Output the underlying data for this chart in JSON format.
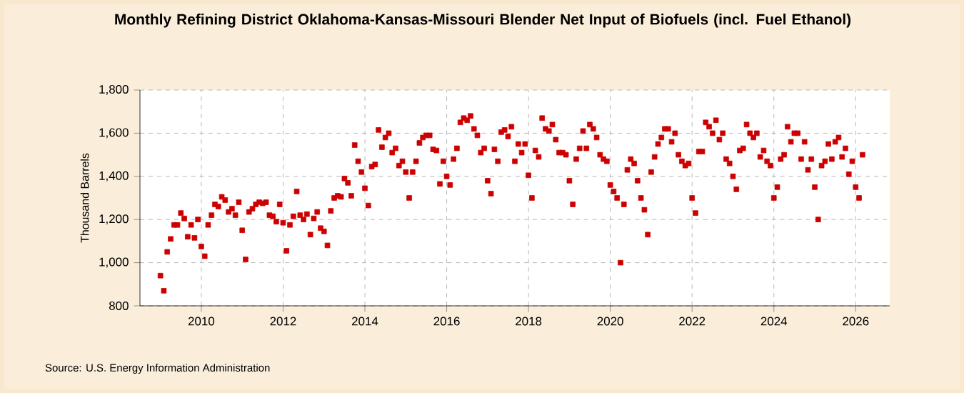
{
  "chart_data": {
    "type": "scatter",
    "title": "Monthly Refining District Oklahoma-Kansas-Missouri Blender Net Input of Biofuels (incl. Fuel Ethanol)",
    "ylabel": "Thousand Barrels",
    "annotations": [
      "Source: U.S. Energy Information Administration"
    ],
    "x": [
      "2009-01",
      "2009-02",
      "2009-03",
      "2009-04",
      "2009-05",
      "2009-06",
      "2009-07",
      "2009-08",
      "2009-09",
      "2009-10",
      "2009-11",
      "2009-12",
      "2010-01",
      "2010-02",
      "2010-03",
      "2010-04",
      "2010-05",
      "2010-06",
      "2010-07",
      "2010-08",
      "2010-09",
      "2010-10",
      "2010-11",
      "2010-12",
      "2011-01",
      "2011-02",
      "2011-03",
      "2011-04",
      "2011-05",
      "2011-06",
      "2011-07",
      "2011-08",
      "2011-09",
      "2011-10",
      "2011-11",
      "2011-12",
      "2012-01",
      "2012-02",
      "2012-03",
      "2012-04",
      "2012-05",
      "2012-06",
      "2012-07",
      "2012-08",
      "2012-09",
      "2012-10",
      "2012-11",
      "2012-12",
      "2013-01",
      "2013-02",
      "2013-03",
      "2013-04",
      "2013-05",
      "2013-06",
      "2013-07",
      "2013-08",
      "2013-09",
      "2013-10",
      "2013-11",
      "2013-12",
      "2014-01",
      "2014-02",
      "2014-03",
      "2014-04",
      "2014-05",
      "2014-06",
      "2014-07",
      "2014-08",
      "2014-09",
      "2014-10",
      "2014-11",
      "2014-12",
      "2015-01",
      "2015-02",
      "2015-03",
      "2015-04",
      "2015-05",
      "2015-06",
      "2015-07",
      "2015-08",
      "2015-09",
      "2015-10",
      "2015-11",
      "2015-12",
      "2016-01",
      "2016-02",
      "2016-03",
      "2016-04",
      "2016-05",
      "2016-06",
      "2016-07",
      "2016-08",
      "2016-09",
      "2016-10",
      "2016-11",
      "2016-12",
      "2017-01",
      "2017-02",
      "2017-03",
      "2017-04",
      "2017-05",
      "2017-06",
      "2017-07",
      "2017-08",
      "2017-09",
      "2017-10",
      "2017-11",
      "2017-12",
      "2018-01",
      "2018-02",
      "2018-03",
      "2018-04",
      "2018-05",
      "2018-06",
      "2018-07",
      "2018-08",
      "2018-09",
      "2018-10",
      "2018-11",
      "2018-12",
      "2019-01",
      "2019-02",
      "2019-03",
      "2019-04",
      "2019-05",
      "2019-06",
      "2019-07",
      "2019-08",
      "2019-09",
      "2019-10",
      "2019-11",
      "2019-12",
      "2020-01",
      "2020-02",
      "2020-03",
      "2020-04",
      "2020-05",
      "2020-06",
      "2020-07",
      "2020-08",
      "2020-09",
      "2020-10",
      "2020-11",
      "2020-12",
      "2021-01",
      "2021-02",
      "2021-03",
      "2021-04",
      "2021-05",
      "2021-06",
      "2021-07",
      "2021-08",
      "2021-09",
      "2021-10",
      "2021-11",
      "2021-12",
      "2022-01",
      "2022-02",
      "2022-03",
      "2022-04",
      "2022-05",
      "2022-06",
      "2022-07",
      "2022-08",
      "2022-09",
      "2022-10",
      "2022-11",
      "2022-12",
      "2023-01",
      "2023-02",
      "2023-03",
      "2023-04",
      "2023-05",
      "2023-06",
      "2023-07",
      "2023-08",
      "2023-09",
      "2023-10",
      "2023-11",
      "2023-12",
      "2024-01",
      "2024-02",
      "2024-03",
      "2024-04",
      "2024-05",
      "2024-06",
      "2024-07",
      "2024-08",
      "2024-09",
      "2024-10",
      "2024-11",
      "2024-12",
      "2025-01",
      "2025-02",
      "2025-03",
      "2025-04",
      "2025-05",
      "2025-06",
      "2025-07",
      "2025-08",
      "2025-09",
      "2025-10",
      "2025-11",
      "2025-12",
      "2026-01",
      "2026-02",
      "2026-03"
    ],
    "values": [
      940,
      870,
      1050,
      1110,
      1175,
      1175,
      1230,
      1205,
      1120,
      1175,
      1115,
      1200,
      1075,
      1030,
      1175,
      1220,
      1270,
      1260,
      1305,
      1290,
      1235,
      1250,
      1220,
      1280,
      1150,
      1015,
      1235,
      1250,
      1270,
      1280,
      1275,
      1280,
      1220,
      1215,
      1190,
      1270,
      1185,
      1055,
      1175,
      1215,
      1330,
      1220,
      1200,
      1225,
      1130,
      1205,
      1235,
      1160,
      1145,
      1080,
      1240,
      1300,
      1310,
      1305,
      1390,
      1370,
      1310,
      1545,
      1470,
      1420,
      1345,
      1265,
      1445,
      1455,
      1615,
      1535,
      1580,
      1600,
      1510,
      1530,
      1450,
      1470,
      1420,
      1300,
      1420,
      1470,
      1555,
      1580,
      1590,
      1590,
      1525,
      1520,
      1365,
      1470,
      1400,
      1360,
      1480,
      1530,
      1650,
      1670,
      1660,
      1680,
      1620,
      1590,
      1510,
      1530,
      1380,
      1320,
      1525,
      1470,
      1605,
      1615,
      1585,
      1630,
      1470,
      1550,
      1510,
      1550,
      1405,
      1300,
      1520,
      1490,
      1670,
      1620,
      1610,
      1640,
      1570,
      1510,
      1510,
      1500,
      1380,
      1270,
      1480,
      1530,
      1610,
      1530,
      1640,
      1620,
      1580,
      1500,
      1480,
      1470,
      1360,
      1330,
      1300,
      1000,
      1270,
      1430,
      1480,
      1460,
      1380,
      1300,
      1245,
      1130,
      1420,
      1490,
      1550,
      1580,
      1620,
      1620,
      1560,
      1600,
      1500,
      1470,
      1450,
      1460,
      1300,
      1230,
      1515,
      1515,
      1650,
      1630,
      1600,
      1660,
      1570,
      1600,
      1480,
      1460,
      1400,
      1340,
      1520,
      1530,
      1640,
      1600,
      1580,
      1600,
      1490,
      1520,
      1470,
      1450,
      1300,
      1350,
      1480,
      1500,
      1630,
      1560,
      1600,
      1600,
      1480,
      1560,
      1430,
      1480,
      1350,
      1200,
      1450,
      1470,
      1550,
      1480,
      1560,
      1580,
      1490,
      1530,
      1410,
      1470,
      1350,
      1300,
      1500
    ],
    "color": "#cc0000",
    "marker": "square",
    "grid": true,
    "xlim": [
      "2008-07-01",
      "2026-11-01"
    ],
    "xticks": [
      "2010",
      "2012",
      "2014",
      "2016",
      "2018",
      "2020",
      "2022",
      "2024",
      "2026"
    ],
    "ylim": [
      800,
      1800
    ],
    "yticks": [
      {
        "value": 800,
        "label": "800"
      },
      {
        "value": 1000,
        "label": "1,000"
      },
      {
        "value": 1200,
        "label": "1,200"
      },
      {
        "value": 1400,
        "label": "1,400"
      },
      {
        "value": 1600,
        "label": "1,600"
      },
      {
        "value": 1800,
        "label": "1,800"
      }
    ]
  }
}
